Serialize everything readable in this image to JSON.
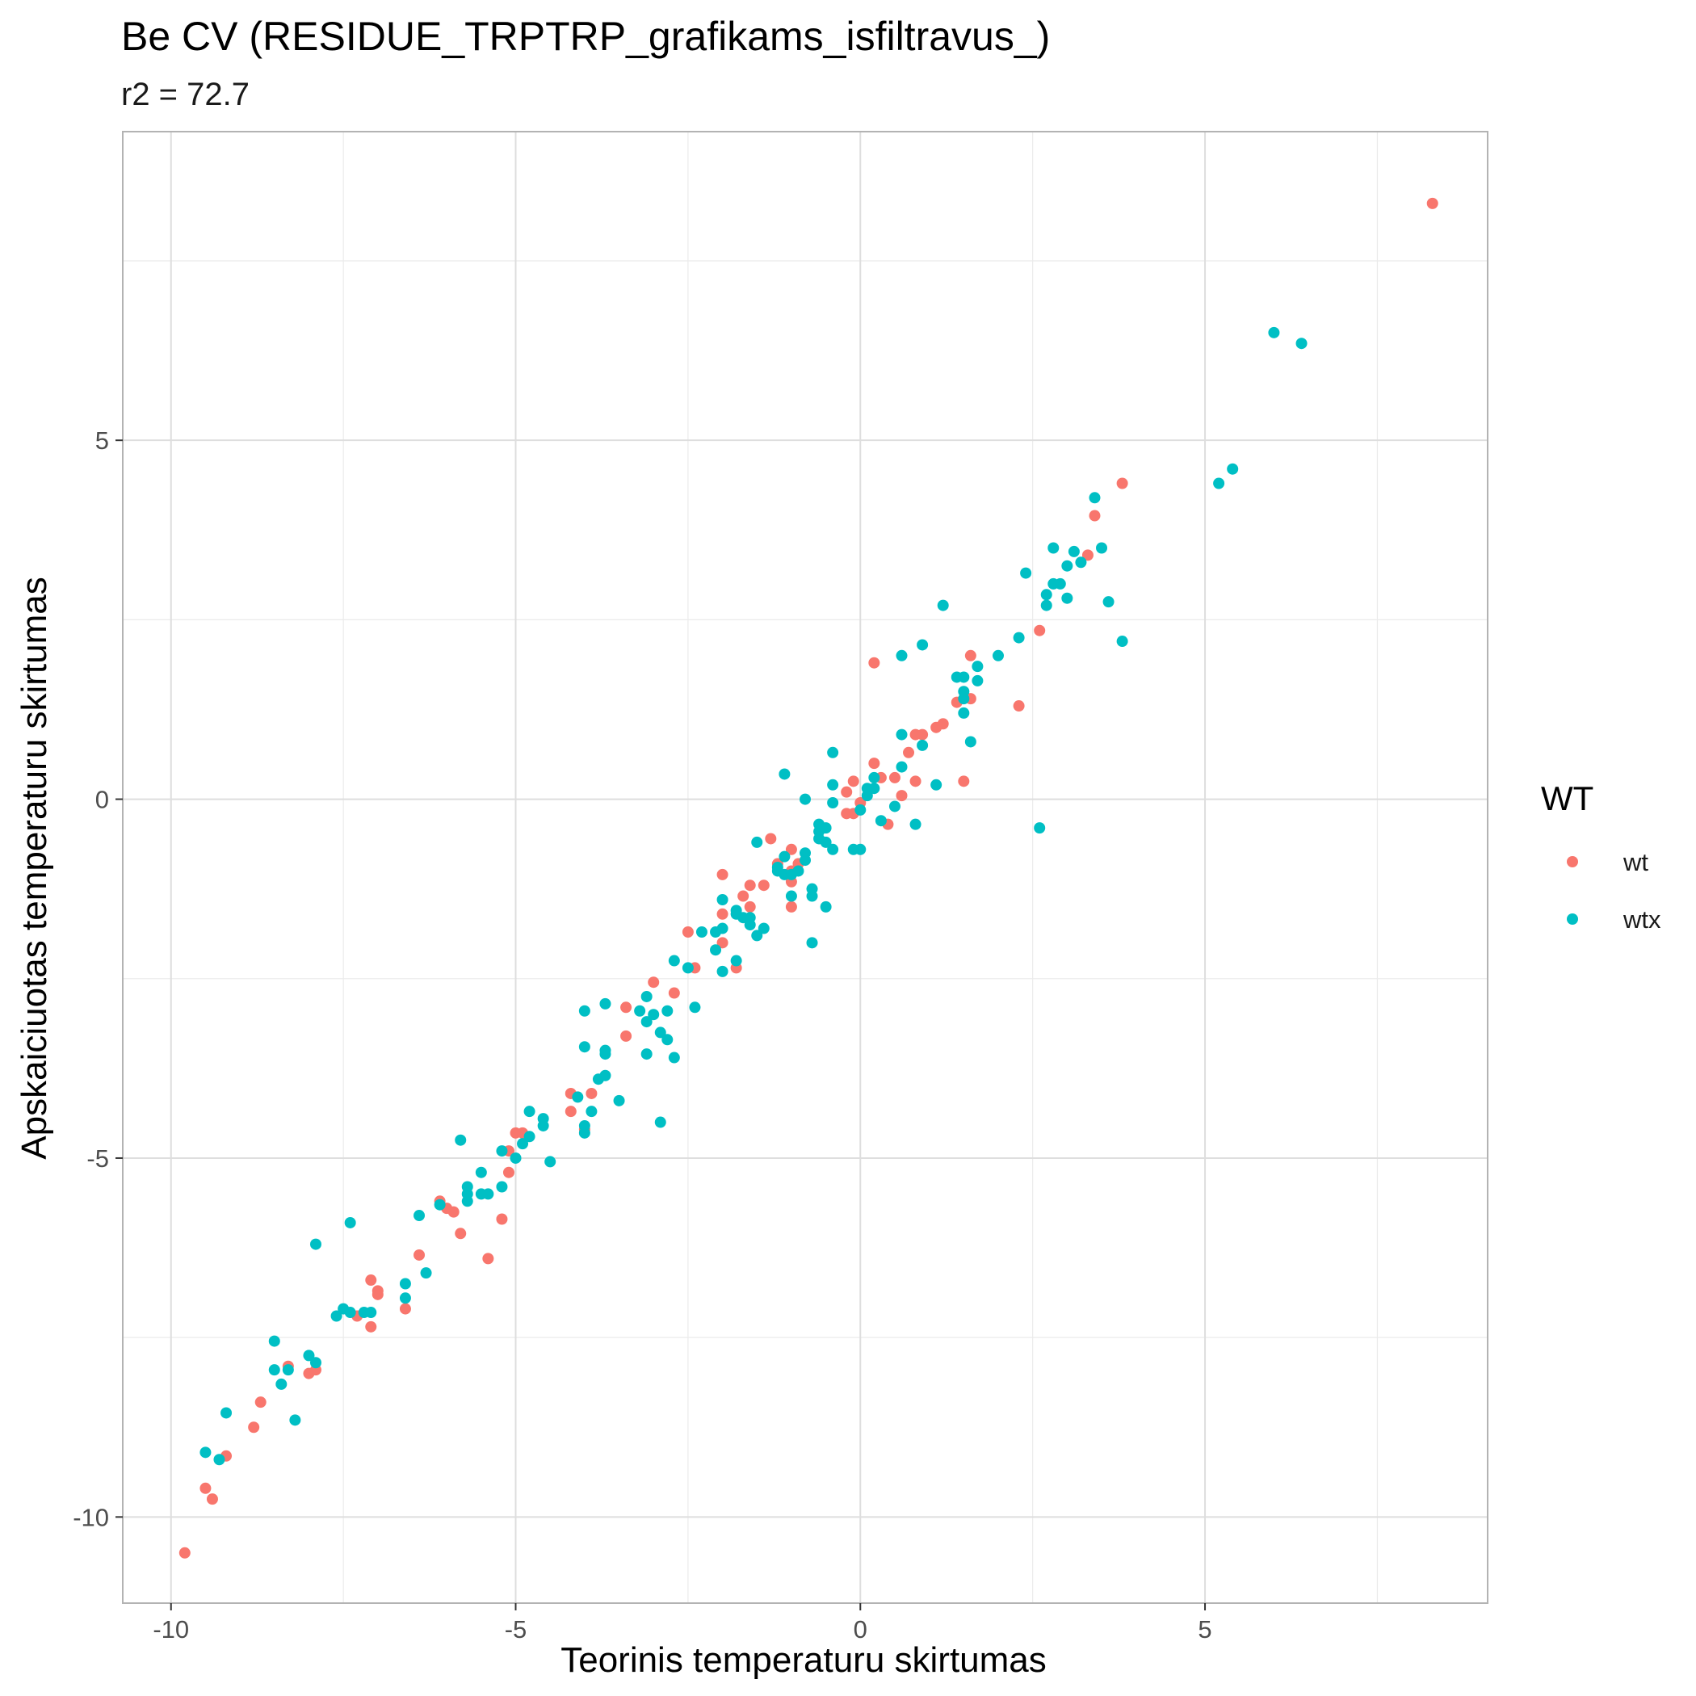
{
  "chart_data": {
    "type": "scatter",
    "title": "Be CV (RESIDUE_TRPTRP_grafikams_isfiltravus_)",
    "subtitle": "r2 = 72.7",
    "xlabel": "Teorinis temperaturu skirtumas",
    "ylabel": "Apskaiciuotas temperaturu skirtumas",
    "xlim": [
      -10.7,
      9.1
    ],
    "ylim": [
      -11.2,
      9.3
    ],
    "x_ticks": [
      -10,
      -5,
      0,
      5
    ],
    "x_tick_labels": [
      "-10",
      "-5",
      "0",
      "5"
    ],
    "y_ticks": [
      -10,
      -5,
      0,
      5
    ],
    "y_tick_labels": [
      "-10",
      "-5",
      "0",
      "5"
    ],
    "grid": true,
    "legend": {
      "title": "WT",
      "position": "right",
      "entries": [
        "wt",
        "wtx"
      ]
    },
    "colors": {
      "wt": "#F8766D",
      "wtx": "#00BFC4"
    },
    "series": [
      {
        "name": "wt",
        "points": [
          [
            -9.8,
            -10.5
          ],
          [
            -9.5,
            -9.6
          ],
          [
            -9.4,
            -9.75
          ],
          [
            -9.2,
            -9.15
          ],
          [
            -8.8,
            -8.75
          ],
          [
            -8.7,
            -8.4
          ],
          [
            -8.3,
            -7.9
          ],
          [
            -8.0,
            -8.0
          ],
          [
            -7.9,
            -7.95
          ],
          [
            -7.3,
            -7.2
          ],
          [
            -7.1,
            -7.35
          ],
          [
            -7.1,
            -6.7
          ],
          [
            -7.0,
            -6.9
          ],
          [
            -7.0,
            -6.85
          ],
          [
            -6.6,
            -7.1
          ],
          [
            -6.4,
            -6.35
          ],
          [
            -6.1,
            -5.6
          ],
          [
            -6.0,
            -5.7
          ],
          [
            -5.9,
            -5.75
          ],
          [
            -5.8,
            -6.05
          ],
          [
            -5.4,
            -6.4
          ],
          [
            -5.2,
            -5.85
          ],
          [
            -5.1,
            -5.2
          ],
          [
            -5.1,
            -4.9
          ],
          [
            -5.0,
            -4.65
          ],
          [
            -4.9,
            -4.65
          ],
          [
            -4.2,
            -4.1
          ],
          [
            -4.2,
            -4.35
          ],
          [
            -4.0,
            -4.6
          ],
          [
            -3.9,
            -4.1
          ],
          [
            -3.4,
            -3.3
          ],
          [
            -3.4,
            -2.9
          ],
          [
            -3.0,
            -2.55
          ],
          [
            -2.7,
            -2.7
          ],
          [
            -2.5,
            -1.85
          ],
          [
            -2.4,
            -2.35
          ],
          [
            -2.0,
            -2.0
          ],
          [
            -2.0,
            -1.6
          ],
          [
            -2.0,
            -1.05
          ],
          [
            -1.8,
            -2.35
          ],
          [
            -1.7,
            -1.35
          ],
          [
            -1.6,
            -1.5
          ],
          [
            -1.6,
            -1.2
          ],
          [
            -1.4,
            -1.2
          ],
          [
            -1.3,
            -0.55
          ],
          [
            -1.2,
            -0.9
          ],
          [
            -1.0,
            -0.7
          ],
          [
            -1.0,
            -1.5
          ],
          [
            -1.0,
            -1.15
          ],
          [
            -1.0,
            -1.0
          ],
          [
            -0.9,
            -0.9
          ],
          [
            -0.2,
            0.1
          ],
          [
            -0.2,
            -0.2
          ],
          [
            -0.1,
            -0.2
          ],
          [
            -0.1,
            0.25
          ],
          [
            0.0,
            -0.05
          ],
          [
            0.2,
            0.5
          ],
          [
            0.2,
            1.9
          ],
          [
            0.3,
            0.3
          ],
          [
            0.4,
            -0.35
          ],
          [
            0.5,
            0.3
          ],
          [
            0.6,
            0.05
          ],
          [
            0.7,
            0.65
          ],
          [
            0.8,
            0.9
          ],
          [
            0.8,
            0.25
          ],
          [
            0.9,
            0.9
          ],
          [
            1.1,
            1.0
          ],
          [
            1.2,
            1.05
          ],
          [
            1.4,
            1.35
          ],
          [
            1.5,
            0.25
          ],
          [
            1.6,
            1.4
          ],
          [
            1.6,
            2.0
          ],
          [
            2.3,
            1.3
          ],
          [
            2.6,
            2.35
          ],
          [
            3.3,
            3.4
          ],
          [
            3.4,
            3.95
          ],
          [
            3.8,
            4.4
          ],
          [
            8.3,
            8.3
          ]
        ]
      },
      {
        "name": "wtx",
        "points": [
          [
            -9.5,
            -9.1
          ],
          [
            -9.3,
            -9.2
          ],
          [
            -9.2,
            -8.55
          ],
          [
            -8.5,
            -7.55
          ],
          [
            -8.5,
            -7.95
          ],
          [
            -8.4,
            -8.15
          ],
          [
            -8.3,
            -7.95
          ],
          [
            -8.2,
            -8.65
          ],
          [
            -8.0,
            -7.75
          ],
          [
            -7.9,
            -7.85
          ],
          [
            -7.9,
            -6.2
          ],
          [
            -7.6,
            -7.2
          ],
          [
            -7.5,
            -7.1
          ],
          [
            -7.4,
            -7.15
          ],
          [
            -7.4,
            -5.9
          ],
          [
            -7.2,
            -7.15
          ],
          [
            -7.1,
            -7.15
          ],
          [
            -6.6,
            -6.75
          ],
          [
            -6.6,
            -6.95
          ],
          [
            -6.4,
            -5.8
          ],
          [
            -6.3,
            -6.6
          ],
          [
            -6.1,
            -5.65
          ],
          [
            -5.8,
            -4.75
          ],
          [
            -5.7,
            -5.6
          ],
          [
            -5.7,
            -5.4
          ],
          [
            -5.7,
            -5.5
          ],
          [
            -5.5,
            -5.5
          ],
          [
            -5.5,
            -5.2
          ],
          [
            -5.4,
            -5.5
          ],
          [
            -5.2,
            -4.9
          ],
          [
            -5.2,
            -5.4
          ],
          [
            -5.0,
            -5.0
          ],
          [
            -4.9,
            -4.8
          ],
          [
            -4.8,
            -4.35
          ],
          [
            -4.8,
            -4.7
          ],
          [
            -4.6,
            -4.55
          ],
          [
            -4.6,
            -4.45
          ],
          [
            -4.5,
            -5.05
          ],
          [
            -4.1,
            -4.15
          ],
          [
            -4.0,
            -4.55
          ],
          [
            -4.0,
            -4.65
          ],
          [
            -4.0,
            -3.45
          ],
          [
            -4.0,
            -2.95
          ],
          [
            -3.9,
            -4.35
          ],
          [
            -3.8,
            -3.9
          ],
          [
            -3.7,
            -3.55
          ],
          [
            -3.7,
            -3.5
          ],
          [
            -3.7,
            -3.85
          ],
          [
            -3.7,
            -2.85
          ],
          [
            -3.5,
            -4.2
          ],
          [
            -3.2,
            -2.95
          ],
          [
            -3.1,
            -3.1
          ],
          [
            -3.1,
            -3.55
          ],
          [
            -3.1,
            -2.75
          ],
          [
            -3.0,
            -3.0
          ],
          [
            -2.9,
            -3.25
          ],
          [
            -2.9,
            -4.5
          ],
          [
            -2.8,
            -2.95
          ],
          [
            -2.8,
            -3.35
          ],
          [
            -2.7,
            -3.6
          ],
          [
            -2.7,
            -2.25
          ],
          [
            -2.5,
            -2.35
          ],
          [
            -2.4,
            -2.9
          ],
          [
            -2.3,
            -1.85
          ],
          [
            -2.1,
            -2.1
          ],
          [
            -2.1,
            -1.85
          ],
          [
            -2.0,
            -1.4
          ],
          [
            -2.0,
            -1.8
          ],
          [
            -2.0,
            -2.4
          ],
          [
            -1.8,
            -1.6
          ],
          [
            -1.8,
            -1.55
          ],
          [
            -1.8,
            -2.25
          ],
          [
            -1.7,
            -1.65
          ],
          [
            -1.6,
            -1.65
          ],
          [
            -1.6,
            -1.75
          ],
          [
            -1.5,
            -0.6
          ],
          [
            -1.5,
            -1.9
          ],
          [
            -1.4,
            -1.8
          ],
          [
            -1.2,
            -1.0
          ],
          [
            -1.2,
            -0.95
          ],
          [
            -1.1,
            -1.05
          ],
          [
            -1.1,
            0.35
          ],
          [
            -1.1,
            -0.8
          ],
          [
            -1.0,
            -1.05
          ],
          [
            -1.0,
            -1.35
          ],
          [
            -0.9,
            -1.0
          ],
          [
            -0.8,
            -0.75
          ],
          [
            -0.8,
            -0.85
          ],
          [
            -0.8,
            0.0
          ],
          [
            -0.7,
            -1.25
          ],
          [
            -0.7,
            -1.35
          ],
          [
            -0.7,
            -2.0
          ],
          [
            -0.6,
            -0.45
          ],
          [
            -0.6,
            -0.35
          ],
          [
            -0.6,
            -0.55
          ],
          [
            -0.5,
            -1.5
          ],
          [
            -0.5,
            -0.4
          ],
          [
            -0.5,
            -0.6
          ],
          [
            -0.4,
            0.2
          ],
          [
            -0.4,
            -0.05
          ],
          [
            -0.4,
            0.65
          ],
          [
            -0.4,
            -0.7
          ],
          [
            -0.1,
            -0.7
          ],
          [
            0.0,
            -0.15
          ],
          [
            0.0,
            -0.7
          ],
          [
            0.1,
            0.15
          ],
          [
            0.1,
            0.05
          ],
          [
            0.2,
            0.3
          ],
          [
            0.2,
            0.15
          ],
          [
            0.3,
            -0.3
          ],
          [
            0.5,
            -0.1
          ],
          [
            0.6,
            0.45
          ],
          [
            0.6,
            0.9
          ],
          [
            0.6,
            2.0
          ],
          [
            0.8,
            -0.35
          ],
          [
            0.9,
            2.15
          ],
          [
            0.9,
            0.75
          ],
          [
            1.1,
            0.2
          ],
          [
            1.2,
            2.7
          ],
          [
            1.4,
            1.7
          ],
          [
            1.5,
            1.5
          ],
          [
            1.5,
            1.7
          ],
          [
            1.5,
            1.4
          ],
          [
            1.5,
            1.2
          ],
          [
            1.6,
            0.8
          ],
          [
            1.7,
            1.85
          ],
          [
            1.7,
            1.65
          ],
          [
            2.0,
            2.0
          ],
          [
            2.3,
            2.25
          ],
          [
            2.4,
            3.15
          ],
          [
            2.6,
            -0.4
          ],
          [
            2.7,
            2.85
          ],
          [
            2.7,
            2.7
          ],
          [
            2.8,
            3.0
          ],
          [
            2.8,
            3.5
          ],
          [
            2.9,
            3.0
          ],
          [
            3.0,
            2.8
          ],
          [
            3.0,
            3.25
          ],
          [
            3.1,
            3.45
          ],
          [
            3.2,
            3.3
          ],
          [
            3.4,
            4.2
          ],
          [
            3.5,
            3.5
          ],
          [
            3.6,
            2.75
          ],
          [
            3.8,
            2.2
          ],
          [
            5.2,
            4.4
          ],
          [
            5.4,
            4.6
          ],
          [
            6.0,
            6.5
          ],
          [
            6.4,
            6.35
          ]
        ]
      }
    ]
  }
}
